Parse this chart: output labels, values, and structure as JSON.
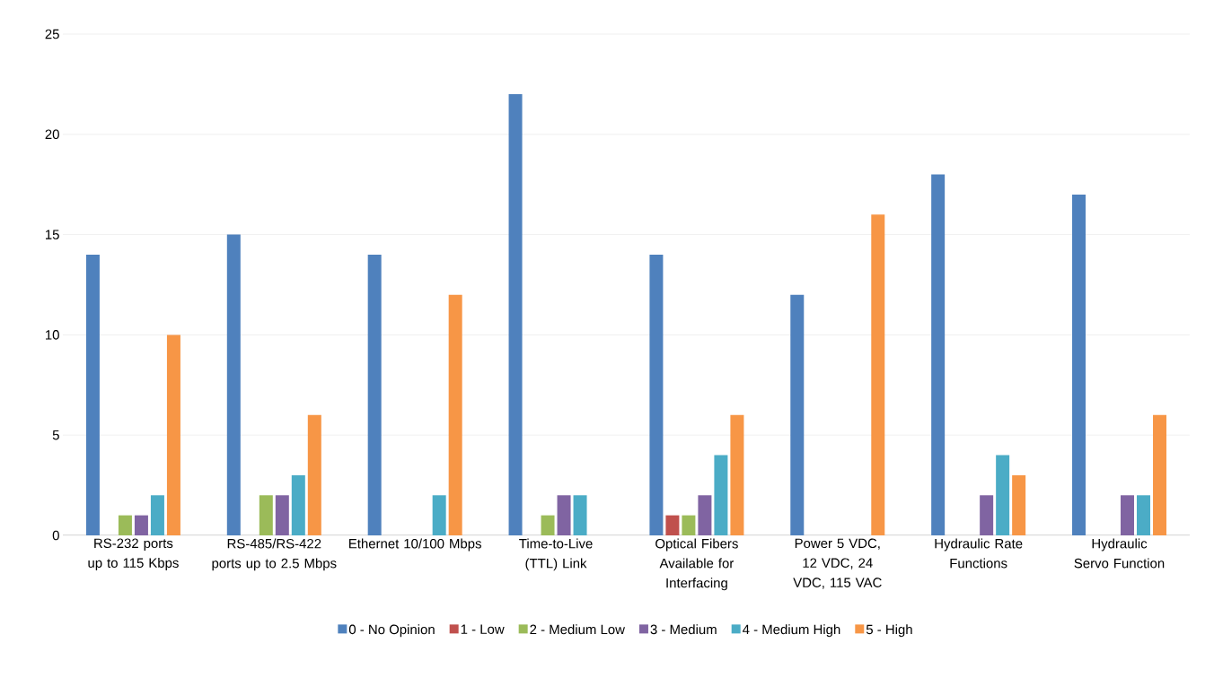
{
  "chart_data": {
    "type": "bar",
    "categories": [
      "RS-232 ports up to 115 Kbps",
      "RS-485/RS-422 ports up to 2.5 Mbps",
      "Ethernet 10/100 Mbps",
      "Time-to-Live (TTL) Link",
      "Optical Fibers Available for Interfacing",
      "Power 5 VDC, 12 VDC, 24 VDC, 115 VAC",
      "Hydraulic Rate Functions",
      "Hydraulic Servo Function"
    ],
    "series": [
      {
        "name": "0 - No Opinion",
        "color": "#4f81bd",
        "values": [
          14,
          15,
          14,
          22,
          14,
          12,
          18,
          17
        ]
      },
      {
        "name": "1 - Low",
        "color": "#c0504d",
        "values": [
          0,
          0,
          0,
          0,
          1,
          0,
          0,
          0
        ]
      },
      {
        "name": "2 - Medium Low",
        "color": "#9bbb59",
        "values": [
          1,
          2,
          0,
          1,
          1,
          0,
          0,
          0
        ]
      },
      {
        "name": "3 - Medium",
        "color": "#8064a2",
        "values": [
          1,
          2,
          0,
          2,
          2,
          0,
          2,
          2
        ]
      },
      {
        "name": "4 - Medium High",
        "color": "#4bacc6",
        "values": [
          2,
          3,
          2,
          2,
          4,
          0,
          4,
          2
        ]
      },
      {
        "name": "5 - High",
        "color": "#f79646",
        "values": [
          10,
          6,
          12,
          0,
          6,
          16,
          3,
          6
        ]
      }
    ],
    "ylim": [
      0,
      25
    ],
    "yticks": [
      0,
      5,
      10,
      15,
      20,
      25
    ],
    "grid": "y",
    "legend": "bottom"
  }
}
